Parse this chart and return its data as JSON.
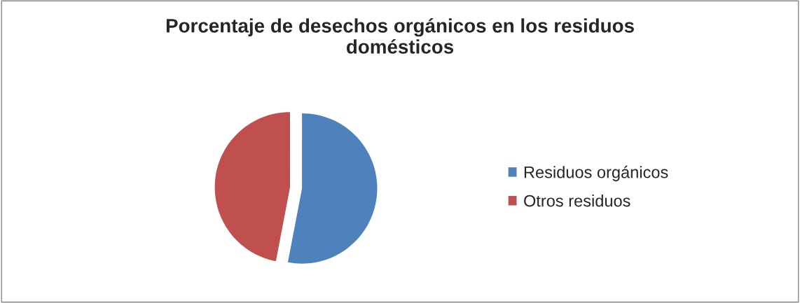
{
  "chart_data": {
    "type": "pie",
    "title": "Porcentaje de desechos orgánicos en los residuos domésticos",
    "categories": [
      "Residuos orgánicos",
      "Otros residuos"
    ],
    "values": [
      53,
      47
    ],
    "colors": [
      "#4f81bd",
      "#c0504d"
    ],
    "legend": "right"
  }
}
